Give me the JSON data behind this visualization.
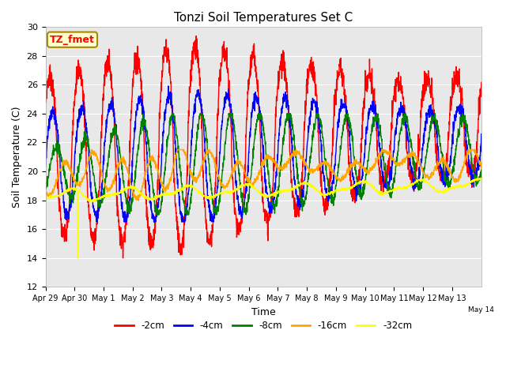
{
  "title": "Tonzi Soil Temperatures Set C",
  "xlabel": "Time",
  "ylabel": "Soil Temperature (C)",
  "ylim": [
    12,
    30
  ],
  "yticks": [
    12,
    14,
    16,
    18,
    20,
    22,
    24,
    26,
    28,
    30
  ],
  "series_colors": [
    "red",
    "blue",
    "green",
    "orange",
    "yellow"
  ],
  "series_labels": [
    "-2cm",
    "-4cm",
    "-8cm",
    "-16cm",
    "-32cm"
  ],
  "plot_bg_color": "#e8e8e8",
  "annotation_text": "TZ_fmet",
  "annotation_bg": "#ffffcc",
  "annotation_border": "#aa8800",
  "n_days": 16,
  "points_per_day": 144
}
